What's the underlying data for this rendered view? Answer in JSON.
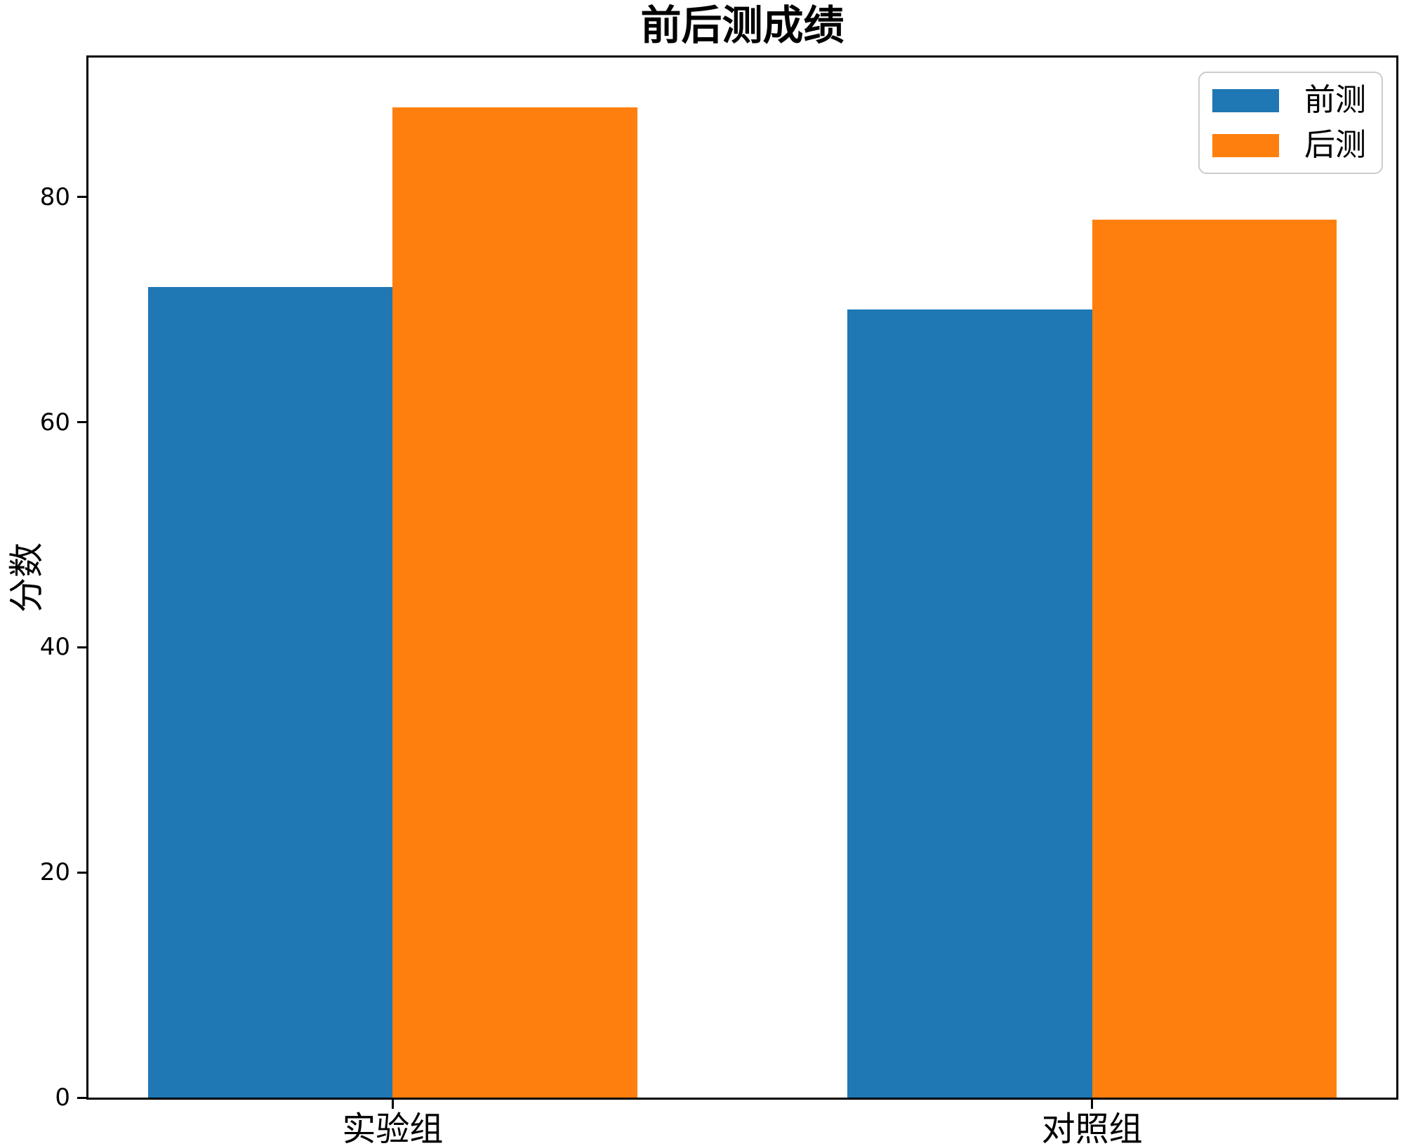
{
  "chart_data": {
    "type": "bar",
    "title": "前后测成绩",
    "xlabel": "",
    "ylabel": "分数",
    "categories": [
      "实验组",
      "对照组"
    ],
    "series": [
      {
        "name": "前测",
        "color": "#1f77b4",
        "values": [
          72,
          70
        ]
      },
      {
        "name": "后测",
        "color": "#ff7f0e",
        "values": [
          88,
          78
        ]
      }
    ],
    "yticks": [
      0,
      20,
      40,
      60,
      80
    ],
    "ylim": [
      0,
      92.4
    ],
    "xlim": [
      -0.435,
      1.435
    ],
    "bar_width": 0.35,
    "grid": false,
    "legend_position": "upper right",
    "axis_color": "#000000",
    "background_color": "#ffffff"
  }
}
